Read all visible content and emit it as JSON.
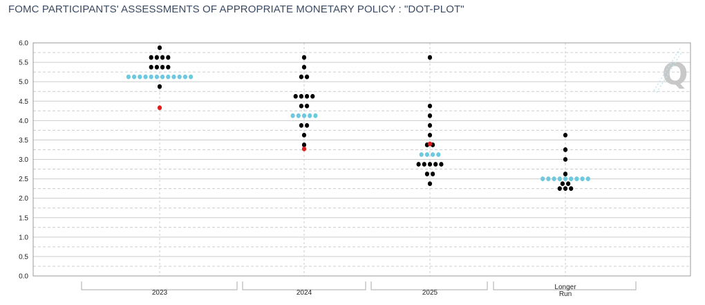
{
  "title": "FOMC PARTICIPANTS' ASSESSMENTS OF APPROPRIATE MONETARY POLICY : \"DOT-PLOT\"",
  "logo_text": "Q",
  "colors": {
    "dot": "#000000",
    "median": "#6ec9df",
    "highlight": "#e01e1e",
    "grid": "#cccccc",
    "axis": "#999999"
  },
  "chart_data": {
    "type": "scatter",
    "title": "FOMC PARTICIPANTS' ASSESSMENTS OF APPROPRIATE MONETARY POLICY : \"DOT-PLOT\"",
    "ylim": [
      0,
      6
    ],
    "yticks": [
      "0.0",
      "0.5",
      "1.0",
      "1.5",
      "2.0",
      "2.5",
      "3.0",
      "3.5",
      "4.0",
      "4.5",
      "5.0",
      "5.5",
      "6.0"
    ],
    "categories": [
      {
        "label_lines": [
          "2023"
        ],
        "groups": [
          {
            "y": 5.875,
            "n": 1
          },
          {
            "y": 5.625,
            "n": 4
          },
          {
            "y": 5.375,
            "n": 4
          },
          {
            "y": 4.875,
            "n": 1
          }
        ],
        "median": {
          "y": 5.125,
          "n": 12
        },
        "highlight": [
          4.33
        ]
      },
      {
        "label_lines": [
          "2024"
        ],
        "groups": [
          {
            "y": 5.625,
            "n": 1
          },
          {
            "y": 5.375,
            "n": 1
          },
          {
            "y": 5.125,
            "n": 2
          },
          {
            "y": 4.625,
            "n": 4
          },
          {
            "y": 4.375,
            "n": 2
          },
          {
            "y": 3.875,
            "n": 2
          },
          {
            "y": 3.625,
            "n": 1
          },
          {
            "y": 3.375,
            "n": 1
          }
        ],
        "median": {
          "y": 4.125,
          "n": 5
        },
        "highlight": [
          3.27
        ]
      },
      {
        "label_lines": [
          "2025"
        ],
        "groups": [
          {
            "y": 5.625,
            "n": 1
          },
          {
            "y": 4.375,
            "n": 1
          },
          {
            "y": 4.125,
            "n": 1
          },
          {
            "y": 3.875,
            "n": 1
          },
          {
            "y": 3.625,
            "n": 1
          },
          {
            "y": 3.375,
            "n": 2
          },
          {
            "y": 2.875,
            "n": 5
          },
          {
            "y": 2.625,
            "n": 2
          },
          {
            "y": 2.375,
            "n": 1
          }
        ],
        "median": {
          "y": 3.125,
          "n": 4
        },
        "highlight": [
          3.4
        ]
      },
      {
        "label_lines": [
          "Longer",
          "Run"
        ],
        "groups": [
          {
            "y": 3.625,
            "n": 1
          },
          {
            "y": 3.25,
            "n": 1
          },
          {
            "y": 3.0,
            "n": 1
          },
          {
            "y": 2.625,
            "n": 1
          },
          {
            "y": 2.375,
            "n": 2
          },
          {
            "y": 2.25,
            "n": 3
          }
        ],
        "median": {
          "y": 2.5,
          "n": 9
        },
        "highlight": []
      }
    ]
  }
}
